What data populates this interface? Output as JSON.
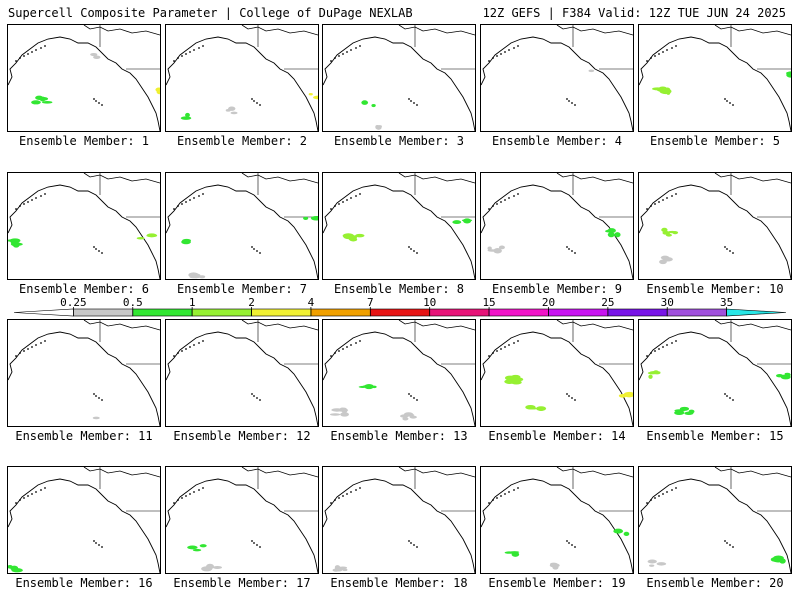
{
  "header": {
    "left": "Supercell Composite Parameter | College of DuPage NEXLAB",
    "right": "12Z GEFS | F384 Valid: 12Z TUE JUN 24 2025"
  },
  "member_label_prefix": "Ensemble Member: ",
  "members": [
    {
      "id": 1,
      "label": "Ensemble Member: 1",
      "blobs": [
        {
          "lon": 0.22,
          "lat": 0.3,
          "cat": 1,
          "n": 5
        },
        {
          "lon": 0.95,
          "lat": 0.38,
          "cat": 3,
          "n": 2
        },
        {
          "lon": 0.6,
          "lat": 0.7,
          "cat": 0,
          "n": 2
        }
      ]
    },
    {
      "id": 2,
      "label": "Ensemble Member: 2",
      "blobs": [
        {
          "lon": 0.95,
          "lat": 0.35,
          "cat": 3,
          "n": 2
        },
        {
          "lon": 0.4,
          "lat": 0.2,
          "cat": 0,
          "n": 3
        },
        {
          "lon": 0.1,
          "lat": 0.15,
          "cat": 1,
          "n": 2
        }
      ]
    },
    {
      "id": 3,
      "label": "Ensemble Member: 3",
      "blobs": [
        {
          "lon": 0.3,
          "lat": 0.28,
          "cat": 1,
          "n": 2
        },
        {
          "lon": 0.35,
          "lat": 0.05,
          "cat": 0,
          "n": 3
        }
      ]
    },
    {
      "id": 4,
      "label": "Ensemble Member: 4",
      "blobs": [
        {
          "lon": 0.7,
          "lat": 0.55,
          "cat": 0,
          "n": 1
        }
      ]
    },
    {
      "id": 5,
      "label": "Ensemble Member: 5",
      "blobs": [
        {
          "lon": 0.15,
          "lat": 0.4,
          "cat": 2,
          "n": 8
        },
        {
          "lon": 0.95,
          "lat": 0.55,
          "cat": 1,
          "n": 3
        }
      ]
    },
    {
      "id": 6,
      "label": "Ensemble Member: 6",
      "blobs": [
        {
          "lon": 0.05,
          "lat": 0.35,
          "cat": 1,
          "n": 6
        },
        {
          "lon": 0.9,
          "lat": 0.4,
          "cat": 2,
          "n": 4
        }
      ]
    },
    {
      "id": 7,
      "label": "Ensemble Member: 7",
      "blobs": [
        {
          "lon": 0.15,
          "lat": 0.35,
          "cat": 1,
          "n": 2
        },
        {
          "lon": 0.2,
          "lat": 0.05,
          "cat": 0,
          "n": 6
        },
        {
          "lon": 0.95,
          "lat": 0.6,
          "cat": 1,
          "n": 2
        }
      ]
    },
    {
      "id": 8,
      "label": "Ensemble Member: 8",
      "blobs": [
        {
          "lon": 0.2,
          "lat": 0.4,
          "cat": 2,
          "n": 6
        },
        {
          "lon": 0.9,
          "lat": 0.55,
          "cat": 1,
          "n": 3
        }
      ]
    },
    {
      "id": 9,
      "label": "Ensemble Member: 9",
      "blobs": [
        {
          "lon": 0.1,
          "lat": 0.3,
          "cat": 0,
          "n": 4
        },
        {
          "lon": 0.85,
          "lat": 0.45,
          "cat": 1,
          "n": 4
        }
      ]
    },
    {
      "id": 10,
      "label": "Ensemble Member: 10",
      "blobs": [
        {
          "lon": 0.2,
          "lat": 0.45,
          "cat": 2,
          "n": 5
        },
        {
          "lon": 0.15,
          "lat": 0.2,
          "cat": 0,
          "n": 3
        }
      ]
    },
    {
      "id": 11,
      "label": "Ensemble Member: 11",
      "blobs": [
        {
          "lon": 0.55,
          "lat": 0.1,
          "cat": 0,
          "n": 1
        }
      ]
    },
    {
      "id": 12,
      "label": "Ensemble Member: 12",
      "blobs": []
    },
    {
      "id": 13,
      "label": "Ensemble Member: 13",
      "blobs": [
        {
          "lon": 0.3,
          "lat": 0.4,
          "cat": 1,
          "n": 4
        },
        {
          "lon": 0.1,
          "lat": 0.15,
          "cat": 0,
          "n": 6
        },
        {
          "lon": 0.55,
          "lat": 0.1,
          "cat": 0,
          "n": 5
        }
      ]
    },
    {
      "id": 14,
      "label": "Ensemble Member: 14",
      "blobs": [
        {
          "lon": 0.2,
          "lat": 0.45,
          "cat": 2,
          "n": 6
        },
        {
          "lon": 0.35,
          "lat": 0.2,
          "cat": 2,
          "n": 4
        },
        {
          "lon": 0.95,
          "lat": 0.3,
          "cat": 3,
          "n": 4
        }
      ]
    },
    {
      "id": 15,
      "label": "Ensemble Member: 15",
      "blobs": [
        {
          "lon": 0.1,
          "lat": 0.5,
          "cat": 2,
          "n": 5
        },
        {
          "lon": 0.3,
          "lat": 0.15,
          "cat": 1,
          "n": 6
        },
        {
          "lon": 0.95,
          "lat": 0.5,
          "cat": 1,
          "n": 4
        }
      ]
    },
    {
      "id": 16,
      "label": "Ensemble Member: 16",
      "blobs": [
        {
          "lon": 0.05,
          "lat": 0.05,
          "cat": 1,
          "n": 3
        }
      ]
    },
    {
      "id": 17,
      "label": "Ensemble Member: 17",
      "blobs": [
        {
          "lon": 0.2,
          "lat": 0.25,
          "cat": 1,
          "n": 3
        },
        {
          "lon": 0.3,
          "lat": 0.08,
          "cat": 0,
          "n": 3
        }
      ]
    },
    {
      "id": 18,
      "label": "Ensemble Member: 18",
      "blobs": [
        {
          "lon": 0.1,
          "lat": 0.05,
          "cat": 0,
          "n": 5
        }
      ]
    },
    {
      "id": 19,
      "label": "Ensemble Member: 19",
      "blobs": [
        {
          "lon": 0.2,
          "lat": 0.2,
          "cat": 1,
          "n": 3
        },
        {
          "lon": 0.5,
          "lat": 0.08,
          "cat": 0,
          "n": 3
        },
        {
          "lon": 0.9,
          "lat": 0.4,
          "cat": 1,
          "n": 2
        }
      ]
    },
    {
      "id": 20,
      "label": "Ensemble Member: 20",
      "blobs": [
        {
          "lon": 0.9,
          "lat": 0.15,
          "cat": 1,
          "n": 4
        },
        {
          "lon": 0.1,
          "lat": 0.1,
          "cat": 0,
          "n": 3
        }
      ]
    }
  ],
  "colorbar": {
    "thresholds": [
      "0.25",
      "0.5",
      "1",
      "2",
      "4",
      "7",
      "10",
      "15",
      "20",
      "25",
      "30",
      "35"
    ],
    "colors": [
      "#ffffff",
      "#c8c8c8",
      "#32e632",
      "#96f032",
      "#f0f032",
      "#f0a000",
      "#e61414",
      "#e61478",
      "#f014c8",
      "#c814f0",
      "#7814e6",
      "#a050dc",
      "#28e6e6"
    ]
  },
  "map_colors": {
    "coast": "#000000",
    "border": "#000000"
  }
}
